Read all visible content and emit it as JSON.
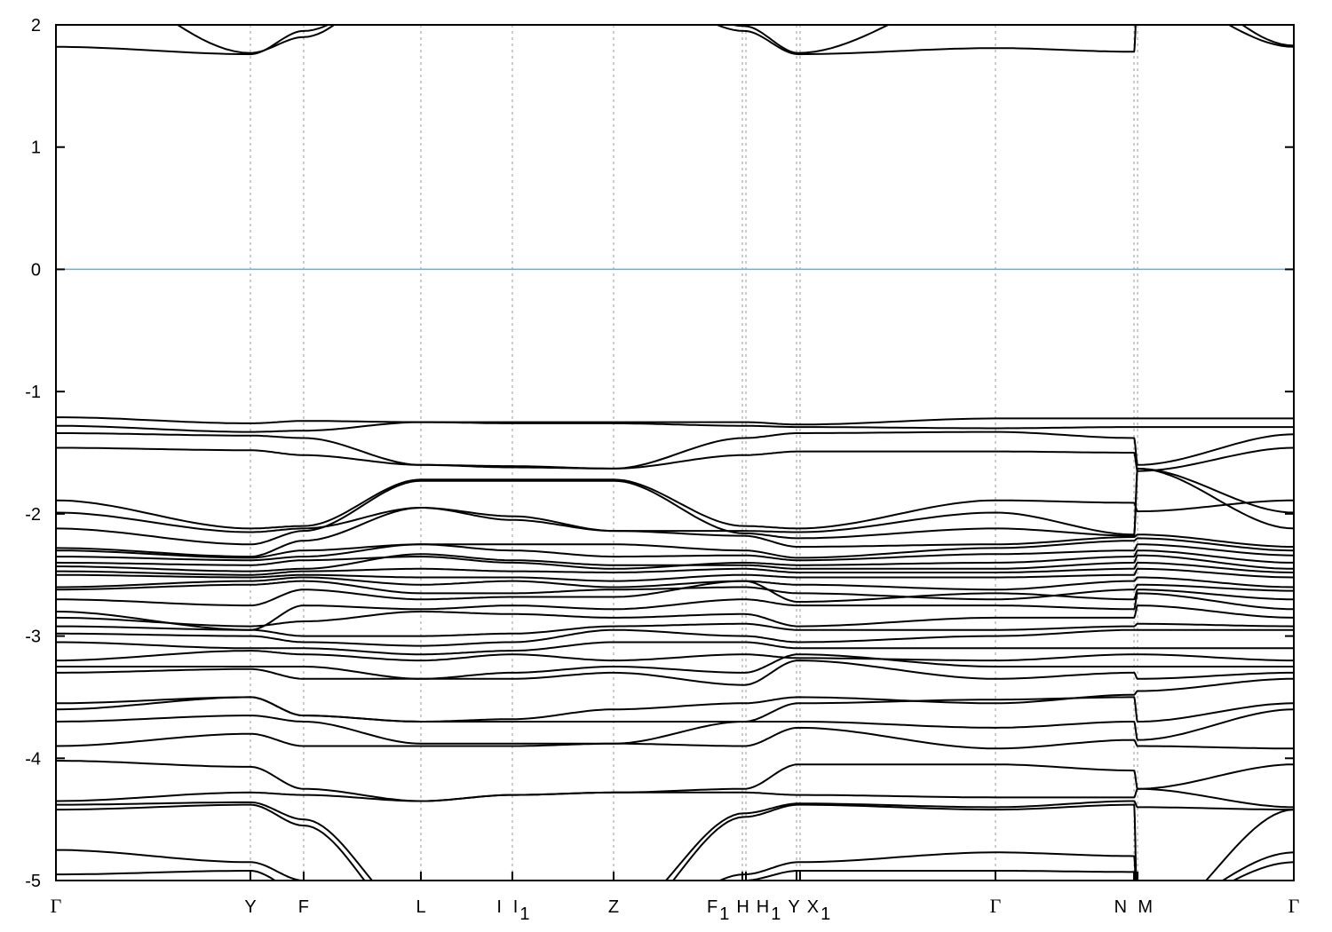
{
  "chart_data": {
    "type": "line",
    "title": "",
    "xlabel": "",
    "ylabel": "",
    "ylim": [
      -5,
      2
    ],
    "xlim": [
      0,
      10
    ],
    "grid": "vertical dashed lines at high-symmetry points",
    "legend": "none",
    "colors": {
      "bands": "#000000",
      "fermi_level": "#56b4e9",
      "grid": "#999999"
    },
    "y_ticks": [
      2,
      1,
      0,
      -1,
      -2,
      -3,
      -4,
      -5
    ],
    "x_tick_labels": [
      {
        "k": 0,
        "label": "Γ",
        "sub": ""
      },
      {
        "k": 1.571,
        "label": "Y",
        "sub": ""
      },
      {
        "k": 2.001,
        "label": "F",
        "sub": ""
      },
      {
        "k": 2.948,
        "label": "L",
        "sub": ""
      },
      {
        "k": 3.58,
        "label": "I",
        "sub": ""
      },
      {
        "k": 3.76,
        "label": "I",
        "sub": "1"
      },
      {
        "k": 4.505,
        "label": "Z",
        "sub": ""
      },
      {
        "k": 5.49,
        "label": "F",
        "sub": "1"
      },
      {
        "k": 5.6,
        "label": "H",
        "sub": ""
      },
      {
        "k": 5.72,
        "label": "H",
        "sub": "1"
      },
      {
        "k": 5.94,
        "label": "Y",
        "sub": ""
      },
      {
        "k": 6.03,
        "label": "X",
        "sub": "1"
      },
      {
        "k": 7.59,
        "label": "Γ",
        "sub": ""
      },
      {
        "k": 8.6,
        "label": "N",
        "sub": ""
      },
      {
        "k": 8.8,
        "label": "M",
        "sub": ""
      },
      {
        "k": 10,
        "label": "Γ",
        "sub": ""
      }
    ],
    "gridlines_k": [
      1.571,
      2.001,
      2.948,
      3.687,
      4.505,
      5.545,
      5.574,
      5.983,
      6.011,
      7.59,
      8.709,
      8.738
    ],
    "fermi_level": 0,
    "band_nodes_k": [
      0,
      1.571,
      2.001,
      2.948,
      3.687,
      4.505,
      5.56,
      5.997,
      7.59,
      8.709,
      8.738,
      10
    ],
    "bands": [
      [
        1.82,
        1.76,
        1.95,
        2.4,
        2.5,
        2.4,
        1.95,
        1.76,
        1.81,
        1.78,
        2.3,
        1.82
      ],
      [
        2.5,
        1.77,
        1.9,
        2.5,
        2.6,
        2.5,
        1.99,
        1.77,
        2.3,
        2.3,
        2.5,
        1.83
      ],
      [
        -1.21,
        -1.26,
        -1.24,
        -1.25,
        -1.25,
        -1.25,
        -1.25,
        -1.27,
        -1.22,
        -1.22,
        -1.22,
        -1.22
      ],
      [
        -1.28,
        -1.33,
        -1.32,
        -1.25,
        -1.26,
        -1.26,
        -1.28,
        -1.29,
        -1.3,
        -1.29,
        -1.29,
        -1.29
      ],
      [
        -1.34,
        -1.36,
        -1.38,
        -1.6,
        -1.62,
        -1.63,
        -1.38,
        -1.34,
        -1.33,
        -1.38,
        -1.6,
        -1.35
      ],
      [
        -1.46,
        -1.48,
        -1.52,
        -1.6,
        -1.61,
        -1.63,
        -1.52,
        -1.49,
        -1.49,
        -1.5,
        -1.65,
        -1.46
      ],
      [
        -1.89,
        -2.12,
        -2.1,
        -1.72,
        -1.72,
        -1.72,
        -2.1,
        -2.12,
        -1.89,
        -1.91,
        -1.98,
        -1.89
      ],
      [
        -1.99,
        -2.15,
        -2.12,
        -1.95,
        -2.05,
        -2.14,
        -2.14,
        -2.15,
        -1.99,
        -2.17,
        -1.63,
        -1.99
      ],
      [
        -2.12,
        -2.25,
        -2.14,
        -1.73,
        -1.73,
        -1.73,
        -2.16,
        -2.2,
        -2.12,
        -2.18,
        -1.63,
        -2.12
      ],
      [
        -2.28,
        -2.35,
        -2.22,
        -1.95,
        -2.02,
        -2.14,
        -2.18,
        -2.27,
        -2.25,
        -2.19,
        -2.17,
        -2.27
      ],
      [
        -2.3,
        -2.36,
        -2.3,
        -2.25,
        -2.25,
        -2.25,
        -2.3,
        -2.36,
        -2.28,
        -2.22,
        -2.2,
        -2.3
      ],
      [
        -2.35,
        -2.38,
        -2.35,
        -2.25,
        -2.3,
        -2.35,
        -2.34,
        -2.38,
        -2.33,
        -2.3,
        -2.25,
        -2.34
      ],
      [
        -2.4,
        -2.42,
        -2.38,
        -2.35,
        -2.4,
        -2.45,
        -2.4,
        -2.42,
        -2.4,
        -2.35,
        -2.3,
        -2.4
      ],
      [
        -2.43,
        -2.47,
        -2.45,
        -2.33,
        -2.38,
        -2.42,
        -2.42,
        -2.45,
        -2.45,
        -2.4,
        -2.34,
        -2.45
      ],
      [
        -2.47,
        -2.5,
        -2.47,
        -2.45,
        -2.47,
        -2.48,
        -2.45,
        -2.48,
        -2.48,
        -2.45,
        -2.4,
        -2.48
      ],
      [
        -2.5,
        -2.52,
        -2.5,
        -2.52,
        -2.52,
        -2.55,
        -2.5,
        -2.52,
        -2.52,
        -2.5,
        -2.45,
        -2.52
      ],
      [
        -2.6,
        -2.55,
        -2.52,
        -2.58,
        -2.55,
        -2.6,
        -2.55,
        -2.58,
        -2.62,
        -2.55,
        -2.52,
        -2.6
      ],
      [
        -2.62,
        -2.58,
        -2.55,
        -2.65,
        -2.65,
        -2.62,
        -2.6,
        -2.65,
        -2.7,
        -2.62,
        -2.58,
        -2.63
      ],
      [
        -2.7,
        -2.75,
        -2.62,
        -2.7,
        -2.68,
        -2.68,
        -2.55,
        -2.72,
        -2.65,
        -2.7,
        -2.62,
        -2.7
      ],
      [
        -2.8,
        -2.95,
        -2.75,
        -2.78,
        -2.75,
        -2.78,
        -2.7,
        -2.75,
        -2.75,
        -2.78,
        -2.65,
        -2.78
      ],
      [
        -2.85,
        -2.92,
        -2.88,
        -2.8,
        -2.82,
        -2.85,
        -2.82,
        -2.92,
        -2.85,
        -2.85,
        -2.75,
        -2.85
      ],
      [
        -2.92,
        -2.95,
        -3.0,
        -3.0,
        -2.98,
        -2.92,
        -2.9,
        -2.95,
        -2.95,
        -2.92,
        -2.9,
        -2.92
      ],
      [
        -2.98,
        -3.0,
        -3.05,
        -3.08,
        -3.05,
        -2.95,
        -3.0,
        -3.05,
        -3.0,
        -2.95,
        -2.95,
        -2.95
      ],
      [
        -3.05,
        -3.1,
        -3.1,
        -3.15,
        -3.12,
        -3.05,
        -3.05,
        -3.1,
        -3.1,
        -3.1,
        -3.1,
        -3.1
      ],
      [
        -3.2,
        -3.12,
        -3.15,
        -3.2,
        -3.15,
        -3.2,
        -3.15,
        -3.18,
        -3.2,
        -3.15,
        -3.15,
        -3.2
      ],
      [
        -3.25,
        -3.25,
        -3.25,
        -3.35,
        -3.3,
        -3.25,
        -3.3,
        -3.15,
        -3.25,
        -3.25,
        -3.25,
        -3.25
      ],
      [
        -3.3,
        -3.27,
        -3.35,
        -3.35,
        -3.35,
        -3.3,
        -3.4,
        -3.2,
        -3.35,
        -3.3,
        -3.35,
        -3.3
      ],
      [
        -3.55,
        -3.5,
        -3.65,
        -3.7,
        -3.68,
        -3.6,
        -3.55,
        -3.5,
        -3.55,
        -3.48,
        -3.45,
        -3.35
      ],
      [
        -3.6,
        -3.5,
        -3.65,
        -3.7,
        -3.7,
        -3.7,
        -3.7,
        -3.55,
        -3.52,
        -3.5,
        -3.7,
        -3.55
      ],
      [
        -3.7,
        -3.65,
        -3.7,
        -3.88,
        -3.88,
        -3.88,
        -3.7,
        -3.7,
        -3.75,
        -3.7,
        -3.85,
        -3.6
      ],
      [
        -3.9,
        -3.8,
        -3.9,
        -3.9,
        -3.9,
        -3.88,
        -3.9,
        -3.75,
        -3.92,
        -3.85,
        -3.9,
        -3.92
      ],
      [
        -4.02,
        -4.07,
        -4.25,
        -4.35,
        -4.3,
        -4.28,
        -4.25,
        -4.05,
        -4.05,
        -4.1,
        -4.25,
        -4.05
      ],
      [
        -4.35,
        -4.28,
        -4.3,
        -4.35,
        -4.3,
        -4.28,
        -4.28,
        -4.3,
        -4.32,
        -4.32,
        -4.25,
        -4.4
      ],
      [
        -4.38,
        -4.36,
        -4.5,
        -5.3,
        -5.5,
        -5.3,
        -4.45,
        -4.37,
        -4.4,
        -4.35,
        -4.4,
        -4.42
      ],
      [
        -4.42,
        -4.38,
        -4.55,
        -5.4,
        -5.6,
        -5.4,
        -4.48,
        -4.38,
        -4.42,
        -4.38,
        -5.4,
        -4.42
      ],
      [
        -4.75,
        -4.85,
        -5.0,
        -5.5,
        -5.5,
        -5.5,
        -4.95,
        -4.85,
        -4.77,
        -4.8,
        -5.3,
        -4.77
      ],
      [
        -4.95,
        -4.92,
        -5.1,
        -5.5,
        -5.5,
        -5.5,
        -5.0,
        -4.92,
        -4.92,
        -4.93,
        -5.3,
        -4.85
      ]
    ]
  }
}
